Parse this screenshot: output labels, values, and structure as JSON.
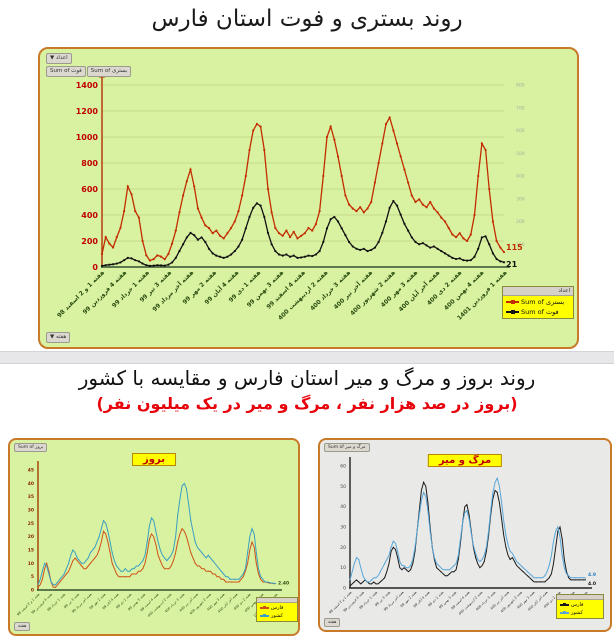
{
  "titles": {
    "top": "روند بستری و فوت استان فارس",
    "bottom": "روند بروز و مرگ و میر استان فارس و مقایسه با کشور",
    "bottom_sub": "(بروز در صد هزار نفر ، مرگ و میر در یک میلیون نفر)"
  },
  "colors": {
    "panel_green": "#d9f2a2",
    "panel_gray": "#e9e9e7",
    "panel_border_orange": "#c87a29",
    "legend_yellow": "#ffff00",
    "subtitle_red": "#e8000b",
    "hospital_red": "#c32b00",
    "death_black": "#111111",
    "country_blue": "#3a9fc0",
    "fars_orange": "#cf5318",
    "mort_country_blue": "#58a6d8"
  },
  "chart_data": [
    {
      "id": "hospitalization-death",
      "type": "line",
      "title": "روند بستری و فوت استان فارس",
      "x_categories": [
        "هفته 1 و 2 اسفند 98",
        "هفته 4 فروردین 99",
        "هفته 1 خرداد 99",
        "هفته 3 تیر 99",
        "هفته آخر مرداد 99",
        "هفته 2 مهر 99",
        "هفته 4 آبان 99",
        "هفته 1 دی 99",
        "هفته 3 بهمن 99",
        "هفته 4 اسفند 99",
        "هفته 2 اردیبهشت 400",
        "هفته 3 خرداد 400",
        "هفته آخر تیر 400",
        "هفته 2 شهریور 400",
        "هفته 3 مهر 400",
        "هفته آخر آبان 400",
        "هفته 2 دی 400",
        "هفته 4 بهمن 400",
        "هفته 1 فروردین 1401"
      ],
      "y_left": {
        "min": 0,
        "max": 1400,
        "step": 200
      },
      "y_right": {
        "min": 0,
        "max": 800,
        "step": 100
      },
      "grid": true,
      "legend": {
        "header": "اعداد",
        "position": "bottom-right",
        "items": [
          "Sum of بستری",
          "Sum of فوت"
        ]
      },
      "buttons": {
        "values_label": "اعداد ▼",
        "fields": [
          "Sum of فوت",
          "Sum of بستری"
        ],
        "week_label": "هفته ▼"
      },
      "series": [
        {
          "name": "Sum of بستری",
          "axis": "left",
          "color": "#c32b00",
          "end_label": {
            "text": "115",
            "color": "#c32b00",
            "dy": -2
          },
          "values": [
            100,
            230,
            180,
            150,
            230,
            300,
            430,
            620,
            560,
            430,
            380,
            200,
            90,
            50,
            60,
            90,
            80,
            60,
            100,
            180,
            280,
            420,
            550,
            660,
            750,
            620,
            450,
            380,
            320,
            300,
            260,
            280,
            240,
            220,
            260,
            300,
            350,
            430,
            550,
            700,
            900,
            1050,
            1100,
            1080,
            900,
            600,
            420,
            300,
            260,
            240,
            280,
            230,
            270,
            220,
            240,
            260,
            300,
            280,
            330,
            430,
            700,
            1000,
            1080,
            980,
            850,
            700,
            550,
            480,
            450,
            430,
            460,
            420,
            450,
            500,
            650,
            800,
            950,
            1100,
            1150,
            1050,
            950,
            850,
            750,
            650,
            550,
            500,
            520,
            480,
            460,
            500,
            450,
            420,
            380,
            350,
            300,
            250,
            230,
            260,
            220,
            200,
            250,
            400,
            700,
            950,
            900,
            600,
            350,
            200,
            150,
            115
          ]
        },
        {
          "name": "Sum of فوت",
          "axis": "right",
          "color": "#111111",
          "end_label": {
            "text": "21",
            "color": "#111111",
            "dy": 5
          },
          "values": [
            5,
            8,
            10,
            12,
            15,
            20,
            30,
            40,
            38,
            30,
            25,
            15,
            8,
            5,
            6,
            8,
            7,
            6,
            10,
            20,
            40,
            70,
            100,
            130,
            150,
            140,
            120,
            130,
            110,
            80,
            60,
            50,
            45,
            40,
            45,
            55,
            70,
            90,
            120,
            170,
            220,
            260,
            280,
            270,
            220,
            150,
            100,
            70,
            55,
            50,
            55,
            45,
            50,
            40,
            42,
            45,
            50,
            48,
            55,
            70,
            110,
            170,
            210,
            220,
            200,
            170,
            140,
            110,
            90,
            80,
            75,
            80,
            70,
            75,
            85,
            110,
            150,
            200,
            260,
            290,
            270,
            230,
            190,
            160,
            130,
            110,
            100,
            105,
            95,
            85,
            90,
            80,
            70,
            60,
            50,
            40,
            35,
            38,
            30,
            28,
            30,
            45,
            80,
            130,
            135,
            100,
            60,
            35,
            25,
            21
          ]
        }
      ]
    },
    {
      "id": "incidence",
      "type": "line",
      "title": "بروز",
      "x_categories": [
        "هفته 1 و 2 اسفند 98",
        "هفته 4 فروردین 99",
        "هفته 1 خرداد 99",
        "هفته 3 تیر 99",
        "هفته آخر مرداد 99",
        "هفته 2 مهر 99",
        "هفته 4 آبان 99",
        "هفته 1 دی 99",
        "هفته 3 بهمن 99",
        "هفته 4 اسفند 99",
        "هفته 2 اردیبهشت 400",
        "هفته 3 خرداد 400",
        "هفته آخر تیر 400",
        "هفته 2 شهریور 400",
        "هفته 3 مهر 400",
        "هفته آخر آبان 400",
        "هفته 2 دی 400",
        "هفته 4 بهمن 400",
        "هفته 1 فروردین 1401"
      ],
      "y_left": {
        "min": 0,
        "max": 45,
        "step": 5
      },
      "grid": false,
      "legend": {
        "position": "bottom-right",
        "items": [
          "فارس",
          "کشور"
        ]
      },
      "buttons": {
        "field_label": "Sum of بروز",
        "week_label": "هفته"
      },
      "series": [
        {
          "name": "فارس",
          "axis": "left",
          "color": "#cf5318",
          "end_label": {
            "text": "2.40",
            "color": "#2a4d0f",
            "dy": 1
          },
          "values": [
            1,
            2,
            4,
            8,
            10,
            7,
            3,
            1,
            1,
            2,
            3,
            4,
            5,
            6,
            7,
            9,
            11,
            12,
            11,
            10,
            9,
            8,
            8,
            9,
            10,
            11,
            12,
            13,
            15,
            18,
            22,
            21,
            18,
            14,
            10,
            8,
            6,
            5,
            5,
            5,
            5,
            5,
            5,
            6,
            6,
            6,
            7,
            7,
            8,
            10,
            14,
            19,
            21,
            20,
            17,
            13,
            11,
            9,
            8,
            8,
            8,
            9,
            11,
            14,
            18,
            21,
            23,
            22,
            20,
            17,
            14,
            12,
            10,
            9,
            9,
            8,
            8,
            7,
            7,
            7,
            6,
            6,
            5,
            5,
            4,
            4,
            3,
            3,
            3,
            3,
            3,
            3,
            3,
            4,
            5,
            7,
            10,
            15,
            18,
            16,
            10,
            6,
            4,
            3,
            3,
            2.8,
            2.6,
            2.5,
            2.4,
            2.4
          ]
        },
        {
          "name": "کشور",
          "axis": "left",
          "color": "#3a9fc0",
          "values": [
            2,
            4,
            7,
            10,
            9,
            6,
            3,
            2,
            2,
            3,
            4,
            5,
            6,
            8,
            10,
            13,
            15,
            14,
            12,
            11,
            10,
            10,
            11,
            12,
            14,
            15,
            16,
            18,
            20,
            23,
            26,
            25,
            22,
            18,
            14,
            11,
            9,
            8,
            7,
            7,
            8,
            7,
            7,
            8,
            8,
            9,
            9,
            10,
            11,
            13,
            18,
            24,
            27,
            26,
            22,
            18,
            15,
            13,
            12,
            11,
            12,
            13,
            15,
            20,
            28,
            34,
            39,
            40,
            38,
            32,
            26,
            22,
            18,
            16,
            15,
            14,
            13,
            12,
            13,
            12,
            11,
            10,
            9,
            8,
            7,
            6,
            5,
            5,
            4,
            4,
            4,
            4,
            4,
            5,
            6,
            8,
            14,
            20,
            23,
            21,
            14,
            8,
            5,
            4,
            3,
            3,
            2.8,
            2.6,
            2.5,
            2.4
          ]
        }
      ]
    },
    {
      "id": "mortality",
      "type": "line",
      "title": "مرگ و میر",
      "x_categories": [
        "هفته 1 و 2 اسفند 98",
        "هفته 4 فروردین 99",
        "هفته 1 خرداد 99",
        "هفته 3 تیر 99",
        "هفته آخر مرداد 99",
        "هفته 2 مهر 99",
        "هفته 4 آبان 99",
        "هفته 1 دی 99",
        "هفته 3 بهمن 99",
        "هفته 4 اسفند 99",
        "هفته 2 اردیبهشت 400",
        "هفته 3 خرداد 400",
        "هفته آخر تیر 400",
        "هفته 2 شهریور 400",
        "هفته 3 مهر 400",
        "هفته آخر آبان 400",
        "هفته 2 دی 400",
        "هفته 4 بهمن 400",
        "هفته 1 فروردین 1401"
      ],
      "y_left": {
        "min": 0,
        "max": 60,
        "step": 10
      },
      "grid": false,
      "legend": {
        "position": "bottom-right",
        "items": [
          "فارس",
          "کشور"
        ]
      },
      "buttons": {
        "field_label": "Sum of مرگ و میر",
        "week_label": "هفته"
      },
      "series": [
        {
          "name": "فارس",
          "axis": "left",
          "color": "#1a1a1a",
          "end_label": {
            "text": "4.0",
            "color": "#111111",
            "dy": 5
          },
          "values": [
            1,
            2,
            3,
            4,
            3,
            2,
            3,
            4,
            3,
            2,
            2,
            3,
            2,
            2,
            3,
            4,
            5,
            8,
            12,
            18,
            20,
            19,
            15,
            10,
            9,
            10,
            9,
            8,
            9,
            12,
            18,
            28,
            38,
            48,
            52,
            50,
            42,
            30,
            20,
            14,
            10,
            9,
            8,
            7,
            6,
            6,
            7,
            8,
            8,
            9,
            14,
            22,
            32,
            40,
            41,
            36,
            28,
            20,
            15,
            12,
            10,
            11,
            13,
            18,
            26,
            36,
            44,
            48,
            47,
            42,
            34,
            26,
            20,
            16,
            14,
            15,
            13,
            11,
            10,
            9,
            8,
            7,
            6,
            5,
            4,
            3,
            3,
            3,
            3,
            3,
            3,
            4,
            5,
            7,
            12,
            20,
            28,
            30,
            24,
            14,
            8,
            5,
            4,
            4,
            4,
            4,
            4,
            4,
            4,
            4
          ]
        },
        {
          "name": "کشور",
          "axis": "left",
          "color": "#58a6d8",
          "end_label": {
            "text": "4.9",
            "color": "#2f7ec7",
            "dy": -2
          },
          "values": [
            4,
            8,
            12,
            15,
            14,
            10,
            6,
            4,
            3,
            3,
            4,
            5,
            5,
            6,
            8,
            10,
            12,
            14,
            16,
            20,
            23,
            22,
            18,
            13,
            11,
            11,
            10,
            10,
            11,
            14,
            20,
            28,
            36,
            43,
            47,
            45,
            38,
            28,
            20,
            15,
            12,
            11,
            10,
            9,
            9,
            9,
            9,
            10,
            11,
            12,
            16,
            24,
            32,
            37,
            38,
            34,
            27,
            21,
            17,
            14,
            13,
            14,
            16,
            20,
            28,
            38,
            47,
            52,
            54,
            50,
            42,
            33,
            26,
            21,
            18,
            17,
            15,
            13,
            12,
            11,
            10,
            9,
            8,
            7,
            6,
            5,
            5,
            5,
            5,
            5,
            6,
            8,
            11,
            16,
            23,
            28,
            30,
            25,
            16,
            10,
            7,
            6,
            5,
            5,
            5,
            5,
            5,
            5,
            5,
            4.9
          ]
        }
      ]
    }
  ]
}
